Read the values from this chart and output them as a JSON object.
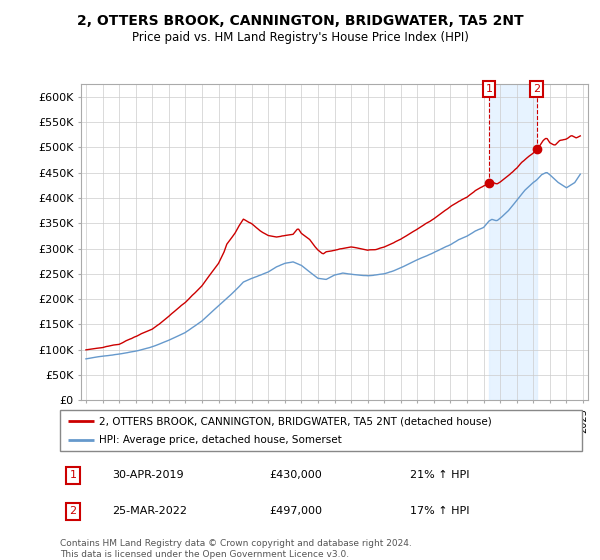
{
  "title": "2, OTTERS BROOK, CANNINGTON, BRIDGWATER, TA5 2NT",
  "subtitle": "Price paid vs. HM Land Registry's House Price Index (HPI)",
  "hpi_label": "HPI: Average price, detached house, Somerset",
  "property_label": "2, OTTERS BROOK, CANNINGTON, BRIDGWATER, TA5 2NT (detached house)",
  "red_color": "#cc0000",
  "blue_color": "#6699cc",
  "shade_color": "#ddeeff",
  "background_color": "#ffffff",
  "grid_color": "#cccccc",
  "ylim": [
    0,
    625000
  ],
  "yticks": [
    0,
    50000,
    100000,
    150000,
    200000,
    250000,
    300000,
    350000,
    400000,
    450000,
    500000,
    550000,
    600000
  ],
  "ytick_labels": [
    "£0",
    "£50K",
    "£100K",
    "£150K",
    "£200K",
    "£250K",
    "£300K",
    "£350K",
    "£400K",
    "£450K",
    "£500K",
    "£550K",
    "£600K"
  ],
  "footnote": "Contains HM Land Registry data © Crown copyright and database right 2024.\nThis data is licensed under the Open Government Licence v3.0.",
  "transaction1_date": "30-APR-2019",
  "transaction1_price": "£430,000",
  "transaction1_hpi": "21% ↑ HPI",
  "transaction2_date": "25-MAR-2022",
  "transaction2_price": "£497,000",
  "transaction2_hpi": "17% ↑ HPI",
  "marker1_x": 2019.33,
  "marker1_y": 430000,
  "marker2_x": 2022.21,
  "marker2_y": 497000,
  "shade_x1": 2019.33,
  "shade_x2": 2022.21,
  "xlim_left": 1994.7,
  "xlim_right": 2025.3
}
